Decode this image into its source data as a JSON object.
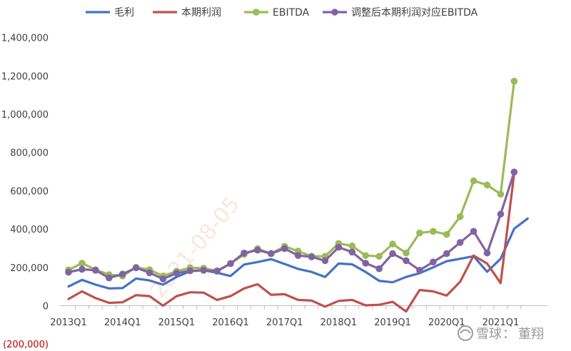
{
  "chart_data": {
    "type": "line",
    "title": "",
    "xlabel": "",
    "ylabel": "",
    "ylim": [
      -200000,
      1400000
    ],
    "yticks": [
      -200000,
      0,
      200000,
      400000,
      600000,
      800000,
      1000000,
      1200000,
      1400000
    ],
    "ytick_labels": [
      "(200,000)",
      "0",
      "200,000",
      "400,000",
      "600,000",
      "800,000",
      "1,000,000",
      "1,200,000",
      "1,400,000"
    ],
    "x": [
      "2013Q1",
      "2013Q2",
      "2013Q3",
      "2013Q4",
      "2014Q1",
      "2014Q2",
      "2014Q3",
      "2014Q4",
      "2015Q1",
      "2015Q2",
      "2015Q3",
      "2015Q4",
      "2016Q1",
      "2016Q2",
      "2016Q3",
      "2016Q4",
      "2017Q1",
      "2017Q2",
      "2017Q3",
      "2017Q4",
      "2018Q1",
      "2018Q2",
      "2018Q3",
      "2018Q4",
      "2019Q1",
      "2019Q2",
      "2019Q3",
      "2019Q4",
      "2020Q1",
      "2020Q2",
      "2020Q3",
      "2020Q4",
      "2021Q1",
      "2021Q2",
      "2021Q3"
    ],
    "xtick_labels": [
      "2013Q1",
      "2014Q1",
      "2015Q1",
      "2016Q1",
      "2017Q1",
      "2018Q1",
      "2019Q1",
      "2020Q1",
      "2021Q1"
    ],
    "legend_position": "top",
    "grid": false,
    "series": [
      {
        "name": "毛利",
        "color": "#4472c4",
        "markers": false,
        "values": [
          100000,
          135000,
          110000,
          90000,
          92000,
          142000,
          132000,
          110000,
          150000,
          180000,
          185000,
          172000,
          155000,
          215000,
          228000,
          243000,
          218000,
          192000,
          176000,
          150000,
          220000,
          216000,
          176000,
          130000,
          122000,
          150000,
          170000,
          200000,
          232000,
          245000,
          258000,
          177000,
          245000,
          402000,
          455000
        ]
      },
      {
        "name": "本期利润",
        "color": "#c0504d",
        "markers": false,
        "values": [
          35000,
          75000,
          40000,
          15000,
          18000,
          55000,
          50000,
          0,
          50000,
          70000,
          68000,
          30000,
          50000,
          90000,
          112000,
          57000,
          60000,
          30000,
          27000,
          -5000,
          25000,
          30000,
          2000,
          5000,
          20000,
          -30000,
          82000,
          75000,
          53000,
          125000,
          262000,
          220000,
          118000,
          690000,
          null
        ]
      },
      {
        "name": "EBITDA",
        "color": "#9bbb59",
        "markers": true,
        "values": [
          187000,
          222000,
          188000,
          162000,
          155000,
          200000,
          188000,
          155000,
          180000,
          198000,
          196000,
          183000,
          220000,
          268000,
          298000,
          272000,
          310000,
          285000,
          258000,
          258000,
          325000,
          312000,
          262000,
          258000,
          322000,
          275000,
          380000,
          388000,
          372000,
          465000,
          652000,
          630000,
          582000,
          1172000,
          null
        ]
      },
      {
        "name": "调整后本期利润对应EBITDA",
        "color": "#8064a2",
        "markers": true,
        "values": [
          175000,
          190000,
          185000,
          145000,
          165000,
          198000,
          172000,
          140000,
          170000,
          182000,
          185000,
          180000,
          220000,
          275000,
          290000,
          272000,
          298000,
          262000,
          255000,
          235000,
          305000,
          280000,
          222000,
          193000,
          272000,
          235000,
          185000,
          228000,
          272000,
          330000,
          388000,
          275000,
          478000,
          698000,
          null
        ]
      }
    ]
  },
  "watermark": {
    "brand": "雪球",
    "separator": "：",
    "author": "董翔",
    "stamp_text": "2021-08-05"
  }
}
